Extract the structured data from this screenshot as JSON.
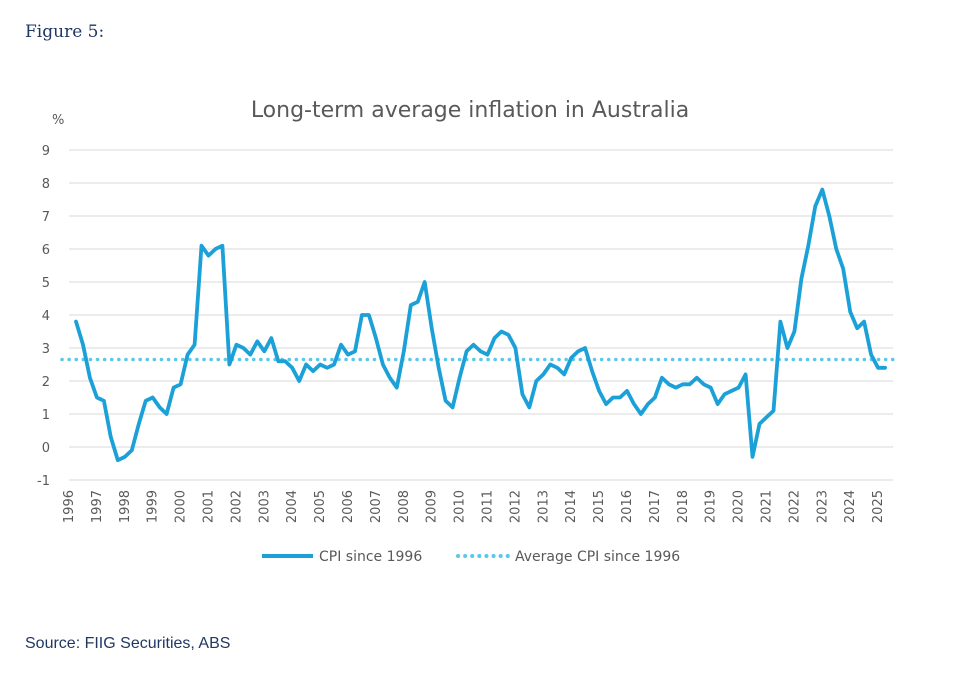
{
  "figure_label": "Figure 5:",
  "source_text": "Source:  FIIG Securities, ABS",
  "colors": {
    "cpi": "#1ba1d8",
    "average": "#5bc8e8",
    "grid": "#d9d9d9",
    "text": "#595959",
    "navy": "#1f3864"
  },
  "chart_data": {
    "type": "line",
    "title": "Long-term average inflation in Australia",
    "ylabel": "%",
    "ylim": [
      -1,
      9
    ],
    "yticks": [
      "-1",
      "0",
      "1",
      "2",
      "3",
      "4",
      "5",
      "6",
      "7",
      "8",
      "9"
    ],
    "xlim": [
      1996,
      2025.5
    ],
    "xticks": [
      "1996",
      "1997",
      "1998",
      "1999",
      "2000",
      "2001",
      "2002",
      "2003",
      "2004",
      "2005",
      "2006",
      "2007",
      "2008",
      "2009",
      "2010",
      "2011",
      "2012",
      "2013",
      "2014",
      "2015",
      "2016",
      "2017",
      "2018",
      "2019",
      "2020",
      "2021",
      "2022",
      "2023",
      "2024",
      "2025"
    ],
    "grid": true,
    "legend_position": "bottom",
    "series": [
      {
        "name": "CPI since 1996",
        "style": "solid",
        "x": [
          1996.25,
          1996.5,
          1996.75,
          1997.0,
          1997.25,
          1997.5,
          1997.75,
          1998.0,
          1998.25,
          1998.5,
          1998.75,
          1999.0,
          1999.25,
          1999.5,
          1999.75,
          2000.0,
          2000.25,
          2000.5,
          2000.75,
          2001.0,
          2001.25,
          2001.5,
          2001.75,
          2002.0,
          2002.25,
          2002.5,
          2002.75,
          2003.0,
          2003.25,
          2003.5,
          2003.75,
          2004.0,
          2004.25,
          2004.5,
          2004.75,
          2005.0,
          2005.25,
          2005.5,
          2005.75,
          2006.0,
          2006.25,
          2006.5,
          2006.75,
          2007.0,
          2007.25,
          2007.5,
          2007.75,
          2008.0,
          2008.25,
          2008.5,
          2008.75,
          2009.0,
          2009.25,
          2009.5,
          2009.75,
          2010.0,
          2010.25,
          2010.5,
          2010.75,
          2011.0,
          2011.25,
          2011.5,
          2011.75,
          2012.0,
          2012.25,
          2012.5,
          2012.75,
          2013.0,
          2013.25,
          2013.5,
          2013.75,
          2014.0,
          2014.25,
          2014.5,
          2014.75,
          2015.0,
          2015.25,
          2015.5,
          2015.75,
          2016.0,
          2016.25,
          2016.5,
          2016.75,
          2017.0,
          2017.25,
          2017.5,
          2017.75,
          2018.0,
          2018.25,
          2018.5,
          2018.75,
          2019.0,
          2019.25,
          2019.5,
          2019.75,
          2020.0,
          2020.25,
          2020.5,
          2020.75,
          2021.0,
          2021.25,
          2021.5,
          2021.75,
          2022.0,
          2022.25,
          2022.5,
          2022.75,
          2023.0,
          2023.25,
          2023.5,
          2023.75,
          2024.0,
          2024.25,
          2024.5,
          2024.75,
          2025.0,
          2025.25
        ],
        "values": [
          3.8,
          3.1,
          2.1,
          1.5,
          1.4,
          0.3,
          -0.4,
          -0.3,
          -0.1,
          0.7,
          1.4,
          1.5,
          1.2,
          1.0,
          1.8,
          1.9,
          2.8,
          3.1,
          6.1,
          5.8,
          6.0,
          6.1,
          2.5,
          3.1,
          3.0,
          2.8,
          3.2,
          2.9,
          3.3,
          2.6,
          2.6,
          2.4,
          2.0,
          2.5,
          2.3,
          2.5,
          2.4,
          2.5,
          3.1,
          2.8,
          2.9,
          4.0,
          4.0,
          3.3,
          2.5,
          2.1,
          1.8,
          2.9,
          4.3,
          4.4,
          5.0,
          3.6,
          2.4,
          1.4,
          1.2,
          2.1,
          2.9,
          3.1,
          2.9,
          2.8,
          3.3,
          3.5,
          3.4,
          3.0,
          1.6,
          1.2,
          2.0,
          2.2,
          2.5,
          2.4,
          2.2,
          2.7,
          2.9,
          3.0,
          2.3,
          1.7,
          1.3,
          1.5,
          1.5,
          1.7,
          1.3,
          1.0,
          1.3,
          1.5,
          2.1,
          1.9,
          1.8,
          1.9,
          1.9,
          2.1,
          1.9,
          1.8,
          1.3,
          1.6,
          1.7,
          1.8,
          2.2,
          -0.3,
          0.7,
          0.9,
          1.1,
          3.8,
          3.0,
          3.5,
          5.1,
          6.1,
          7.3,
          7.8,
          7.0,
          6.0,
          5.4,
          4.1,
          3.6,
          3.8,
          2.8,
          2.4,
          2.4
        ]
      },
      {
        "name": "Average CPI since 1996",
        "style": "dotted",
        "value": 2.65
      }
    ]
  }
}
